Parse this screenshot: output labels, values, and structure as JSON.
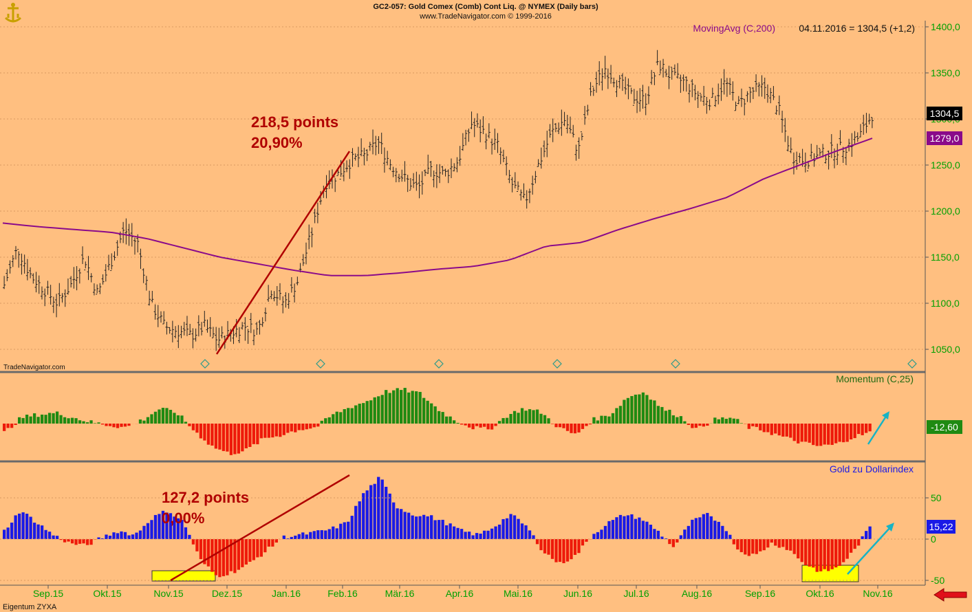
{
  "header": {
    "title": "GC2-057:  Gold Comex (Comb) Cont Liq. @ NYMEX  (Daily bars)",
    "subtitle": "www.TradeNavigator.com © 1999-2016"
  },
  "footer": {
    "owner": "Eigentum ZYXA"
  },
  "colors": {
    "background": "#ffbf80",
    "price_bars": "#202020",
    "moving_average": "#8a0a8a",
    "trend_line": "#b00000",
    "positive_hist": "#1f8a12",
    "negative_hist": "#ee1a0a",
    "ratio_positive": "#1a1ae6",
    "ratio_negative": "#ee1a0a",
    "highlight": "#ffff00",
    "arrow": "#17b3c4",
    "axis_text": "#00a000",
    "annotation": "#b00000"
  },
  "chart_data": [
    {
      "type": "line",
      "name": "price",
      "title": "GC2-057:  Gold Comex (Comb) Cont Liq. @ NYMEX  (Daily bars)",
      "legend": "MovingAvg (C,200)",
      "legend_value": "04.11.2016 = 1304,5 (+1,2)",
      "watermark": "TradeNavigator.com",
      "ylim": [
        1040,
        1410
      ],
      "yticks": [
        "1400,0",
        "1350,0",
        "1300,0",
        "1250,0",
        "1200,0",
        "1150,0",
        "1100,0",
        "1050,0"
      ],
      "ytick_values": [
        1400,
        1350,
        1300,
        1250,
        1200,
        1150,
        1100,
        1050
      ],
      "last_price_label": "1304,5",
      "ma_label": "1279,0",
      "x_months": [
        "Sep.15",
        "Okt.15",
        "Nov.15",
        "Dez.15",
        "Jan.16",
        "Feb.16",
        "Mär.16",
        "Apr.16",
        "Mai.16",
        "Jun.16",
        "Jul.16",
        "Aug.16",
        "Sep.16",
        "Okt.16",
        "Nov.16"
      ],
      "price_close_approx": [
        1120,
        1160,
        1130,
        1115,
        1100,
        1120,
        1150,
        1110,
        1145,
        1180,
        1165,
        1100,
        1075,
        1070,
        1065,
        1075,
        1060,
        1068,
        1075,
        1070,
        1115,
        1100,
        1125,
        1175,
        1230,
        1240,
        1255,
        1260,
        1275,
        1250,
        1235,
        1225,
        1245,
        1240,
        1255,
        1295,
        1285,
        1270,
        1230,
        1210,
        1250,
        1285,
        1300,
        1265,
        1330,
        1355,
        1340,
        1325,
        1320,
        1360,
        1345,
        1340,
        1325,
        1320,
        1340,
        1315,
        1330,
        1335,
        1310,
        1260,
        1255,
        1260,
        1265,
        1270,
        1280,
        1305
      ],
      "moving_average_approx": [
        1187,
        1183,
        1180,
        1177,
        1170,
        1160,
        1150,
        1143,
        1136,
        1130,
        1130,
        1133,
        1137,
        1140,
        1147,
        1162,
        1166,
        1180,
        1192,
        1203,
        1215,
        1235,
        1250,
        1265,
        1279
      ],
      "annotations": [
        {
          "text": "218,5 points",
          "text2": "20,90%",
          "from": [
            1045,
            "Dez.15"
          ],
          "to": [
            1263,
            "Feb.16"
          ]
        }
      ]
    },
    {
      "type": "bar",
      "name": "momentum",
      "legend": "Momentum (C,25)",
      "last_value_label": "-12,60",
      "values_approx": [
        -12,
        8,
        12,
        14,
        8,
        2,
        -2,
        -5,
        5,
        20,
        14,
        -10,
        -30,
        -40,
        -35,
        -20,
        -15,
        -8,
        -5,
        12,
        22,
        30,
        42,
        45,
        40,
        20,
        5,
        -5,
        -8,
        10,
        20,
        15,
        -5,
        -15,
        5,
        12,
        35,
        42,
        20,
        10,
        -8,
        5,
        8,
        -5,
        -10,
        -18,
        -25,
        -30,
        -28,
        -18,
        -12
      ]
    },
    {
      "type": "bar",
      "name": "gold-to-dollar-index",
      "legend": "Gold zu Dollarindex",
      "yticks": [
        "50",
        "0",
        "-50"
      ],
      "ytick_values": [
        50,
        0,
        -50
      ],
      "last_value_label": "15,22",
      "values_approx": [
        10,
        35,
        20,
        5,
        -5,
        -8,
        2,
        10,
        5,
        25,
        35,
        20,
        -25,
        -45,
        -40,
        -30,
        -15,
        2,
        5,
        8,
        12,
        20,
        55,
        75,
        40,
        30,
        28,
        20,
        10,
        5,
        15,
        30,
        15,
        -15,
        -30,
        -20,
        5,
        20,
        30,
        25,
        10,
        -10,
        20,
        30,
        18,
        -15,
        -20,
        -5,
        -12,
        -30,
        -40,
        -35,
        -15,
        15
      ],
      "annotations": [
        {
          "text": "127,2 points",
          "text2": "0,00%"
        }
      ]
    }
  ]
}
